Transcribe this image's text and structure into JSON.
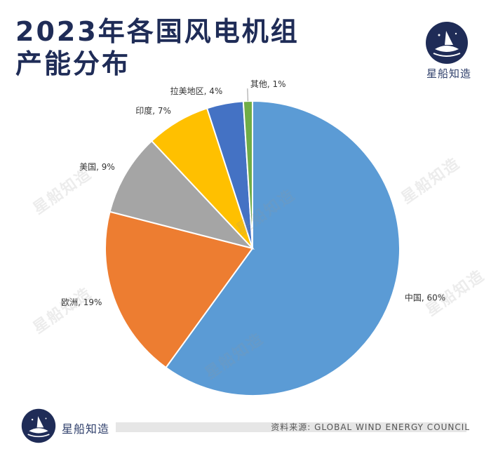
{
  "title": {
    "line1": "2023年各国风电机组",
    "line2": "产能分布"
  },
  "brand": {
    "name": "星船知造",
    "watermark": "星船知造"
  },
  "source": "资料来源: GLOBAL WIND ENERGY COUNCIL",
  "chart_data": {
    "type": "pie",
    "start": "12 o'clock, clockwise",
    "slices": [
      {
        "label": "中国, 60%",
        "name": "中国",
        "value": 60,
        "color": "#5b9bd5"
      },
      {
        "label": "欧洲, 19%",
        "name": "欧洲",
        "value": 19,
        "color": "#ed7d31"
      },
      {
        "label": "美国, 9%",
        "name": "美国",
        "value": 9,
        "color": "#a5a5a5"
      },
      {
        "label": "印度, 7%",
        "name": "印度",
        "value": 7,
        "color": "#ffc000"
      },
      {
        "label": "拉美地区, 4%",
        "name": "拉美地区",
        "value": 4,
        "color": "#4472c4"
      },
      {
        "label": "其他, 1%",
        "name": "其他",
        "value": 1,
        "color": "#70ad47"
      }
    ]
  }
}
